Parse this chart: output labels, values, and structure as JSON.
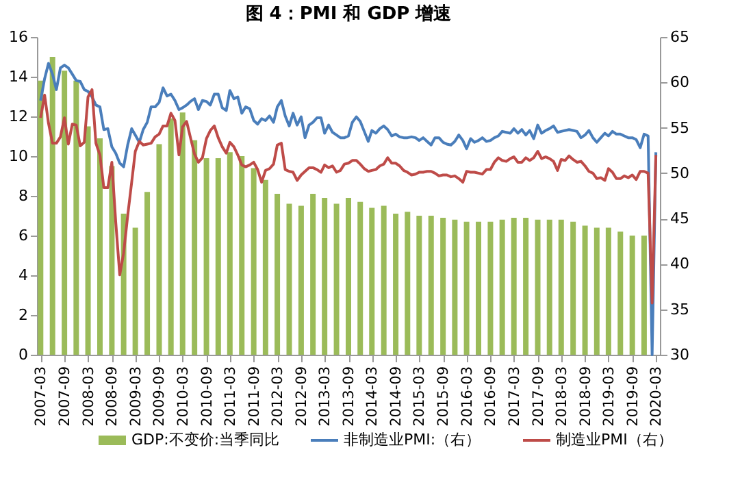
{
  "chart_data": {
    "type": "line",
    "title": "图 4：PMI 和 GDP 增速",
    "x": [
      "2007-03",
      "2007-04",
      "2007-05",
      "2007-06",
      "2007-07",
      "2007-08",
      "2007-09",
      "2007-10",
      "2007-11",
      "2007-12",
      "2008-01",
      "2008-02",
      "2008-03",
      "2008-04",
      "2008-05",
      "2008-06",
      "2008-07",
      "2008-08",
      "2008-09",
      "2008-10",
      "2008-11",
      "2008-12",
      "2009-01",
      "2009-02",
      "2009-03",
      "2009-04",
      "2009-05",
      "2009-06",
      "2009-07",
      "2009-08",
      "2009-09",
      "2009-10",
      "2009-11",
      "2009-12",
      "2010-01",
      "2010-02",
      "2010-03",
      "2010-04",
      "2010-05",
      "2010-06",
      "2010-07",
      "2010-08",
      "2010-09",
      "2010-10",
      "2010-11",
      "2010-12",
      "2011-01",
      "2011-02",
      "2011-03",
      "2011-04",
      "2011-05",
      "2011-06",
      "2011-07",
      "2011-08",
      "2011-09",
      "2011-10",
      "2011-11",
      "2011-12",
      "2012-01",
      "2012-02",
      "2012-03",
      "2012-04",
      "2012-05",
      "2012-06",
      "2012-07",
      "2012-08",
      "2012-09",
      "2012-10",
      "2012-11",
      "2012-12",
      "2013-01",
      "2013-02",
      "2013-03",
      "2013-04",
      "2013-05",
      "2013-06",
      "2013-07",
      "2013-08",
      "2013-09",
      "2013-10",
      "2013-11",
      "2013-12",
      "2014-01",
      "2014-02",
      "2014-03",
      "2014-04",
      "2014-05",
      "2014-06",
      "2014-07",
      "2014-08",
      "2014-09",
      "2014-10",
      "2014-11",
      "2014-12",
      "2015-01",
      "2015-02",
      "2015-03",
      "2015-04",
      "2015-05",
      "2015-06",
      "2015-07",
      "2015-08",
      "2015-09",
      "2015-10",
      "2015-11",
      "2015-12",
      "2016-01",
      "2016-02",
      "2016-03",
      "2016-04",
      "2016-05",
      "2016-06",
      "2016-07",
      "2016-08",
      "2016-09",
      "2016-10",
      "2016-11",
      "2016-12",
      "2017-01",
      "2017-02",
      "2017-03",
      "2017-04",
      "2017-05",
      "2017-06",
      "2017-07",
      "2017-08",
      "2017-09",
      "2017-10",
      "2017-11",
      "2017-12",
      "2018-01",
      "2018-02",
      "2018-03",
      "2018-04",
      "2018-05",
      "2018-06",
      "2018-07",
      "2018-08",
      "2018-09",
      "2018-10",
      "2018-11",
      "2018-12",
      "2019-01",
      "2019-02",
      "2019-03",
      "2019-04",
      "2019-05",
      "2019-06",
      "2019-07",
      "2019-08",
      "2019-09",
      "2019-10",
      "2019-11",
      "2019-12",
      "2020-01",
      "2020-02",
      "2020-03"
    ],
    "series": [
      {
        "name": "GDP:不变价:当季同比",
        "type": "bar",
        "axis": "y",
        "color": "#9bbb59",
        "x": [
          "2007-03",
          "2007-06",
          "2007-09",
          "2007-12",
          "2008-03",
          "2008-06",
          "2008-09",
          "2008-12",
          "2009-03",
          "2009-06",
          "2009-09",
          "2009-12",
          "2010-03",
          "2010-06",
          "2010-09",
          "2010-12",
          "2011-03",
          "2011-06",
          "2011-09",
          "2011-12",
          "2012-03",
          "2012-06",
          "2012-09",
          "2012-12",
          "2013-03",
          "2013-06",
          "2013-09",
          "2013-12",
          "2014-03",
          "2014-06",
          "2014-09",
          "2014-12",
          "2015-03",
          "2015-06",
          "2015-09",
          "2015-12",
          "2016-03",
          "2016-06",
          "2016-09",
          "2016-12",
          "2017-03",
          "2017-06",
          "2017-09",
          "2017-12",
          "2018-03",
          "2018-06",
          "2018-09",
          "2018-12",
          "2019-03",
          "2019-06",
          "2019-09",
          "2019-12"
        ],
        "values": [
          13.8,
          15.0,
          14.3,
          13.8,
          11.5,
          10.9,
          9.5,
          7.1,
          6.4,
          8.2,
          10.6,
          11.9,
          12.2,
          10.8,
          9.9,
          9.9,
          10.2,
          10.0,
          9.4,
          8.8,
          8.1,
          7.6,
          7.5,
          8.1,
          7.9,
          7.6,
          7.9,
          7.7,
          7.4,
          7.5,
          7.1,
          7.2,
          7.0,
          7.0,
          6.9,
          6.8,
          6.7,
          6.7,
          6.7,
          6.8,
          6.9,
          6.9,
          6.8,
          6.8,
          6.8,
          6.7,
          6.5,
          6.4,
          6.4,
          6.2,
          6.0,
          6.0
        ]
      },
      {
        "name": "非制造业PMI:（右）",
        "axis": "y2",
        "color": "#4a7ebb",
        "values": [
          58.0,
          60.4,
          62.1,
          60.9,
          59.2,
          61.6,
          61.9,
          61.6,
          60.9,
          60.2,
          60.1,
          59.2,
          59.0,
          58.4,
          57.5,
          57.3,
          54.8,
          54.9,
          52.9,
          52.2,
          51.1,
          50.7,
          53.1,
          54.9,
          54.2,
          53.4,
          54.8,
          55.6,
          57.3,
          57.3,
          57.8,
          59.4,
          58.5,
          58.7,
          58.0,
          57.0,
          57.2,
          57.5,
          57.9,
          58.2,
          57.0,
          58.0,
          57.9,
          57.5,
          58.7,
          58.7,
          57.2,
          56.9,
          59.1,
          58.2,
          58.4,
          56.6,
          57.3,
          57.1,
          55.8,
          55.4,
          56.0,
          55.8,
          56.3,
          55.6,
          57.3,
          58.0,
          56.3,
          55.2,
          56.6,
          55.3,
          56.2,
          53.9,
          55.3,
          55.6,
          56.1,
          56.1,
          54.4,
          55.3,
          54.5,
          54.2,
          53.9,
          53.9,
          54.1,
          55.6,
          56.2,
          55.7,
          54.6,
          53.5,
          54.7,
          54.4,
          54.9,
          55.2,
          54.8,
          54.1,
          54.3,
          54.0,
          53.9,
          53.9,
          54.0,
          53.9,
          53.6,
          53.9,
          53.5,
          53.1,
          53.9,
          53.9,
          53.4,
          53.2,
          53.1,
          53.5,
          54.2,
          53.6,
          52.7,
          53.8,
          53.4,
          53.6,
          53.9,
          53.5,
          53.6,
          53.9,
          54.1,
          54.6,
          54.5,
          54.4,
          54.9,
          54.4,
          54.8,
          54.2,
          54.7,
          53.8,
          55.3,
          54.4,
          54.7,
          54.9,
          55.2,
          54.5,
          54.6,
          54.7,
          54.8,
          54.7,
          54.6,
          53.9,
          54.2,
          54.7,
          53.9,
          53.4,
          53.9,
          54.4,
          54.1,
          54.6,
          54.3,
          54.3,
          54.1,
          53.9,
          53.9,
          53.7,
          52.8,
          54.3,
          54.1,
          30.0,
          52.3
        ]
      },
      {
        "name": "制造业PMI（右）",
        "axis": "y2",
        "color": "#be4b48",
        "values": [
          56.1,
          58.6,
          55.5,
          53.3,
          53.3,
          54.0,
          56.1,
          53.2,
          55.4,
          55.3,
          53.0,
          53.4,
          58.4,
          59.2,
          53.3,
          52.0,
          48.4,
          48.4,
          51.2,
          44.6,
          38.8,
          41.2,
          45.3,
          49.0,
          52.4,
          53.5,
          53.1,
          53.2,
          53.3,
          54.0,
          54.3,
          55.2,
          55.2,
          56.6,
          55.8,
          52.0,
          55.1,
          55.7,
          53.9,
          52.1,
          51.2,
          51.7,
          53.8,
          54.7,
          55.2,
          53.9,
          52.9,
          52.2,
          53.4,
          52.9,
          52.0,
          50.9,
          50.7,
          50.9,
          51.2,
          50.4,
          49.0,
          50.3,
          50.5,
          51.0,
          53.1,
          53.3,
          50.4,
          50.2,
          50.1,
          49.2,
          49.8,
          50.2,
          50.6,
          50.6,
          50.4,
          50.1,
          50.9,
          50.6,
          50.8,
          50.1,
          50.3,
          51.0,
          51.1,
          51.4,
          51.4,
          51.0,
          50.5,
          50.2,
          50.3,
          50.4,
          50.8,
          51.0,
          51.7,
          51.1,
          51.1,
          50.8,
          50.3,
          50.1,
          49.8,
          49.9,
          50.1,
          50.1,
          50.2,
          50.2,
          50.0,
          49.7,
          49.8,
          49.8,
          49.6,
          49.7,
          49.4,
          49.0,
          50.2,
          50.1,
          50.1,
          50.0,
          49.9,
          50.4,
          50.4,
          51.2,
          51.7,
          51.4,
          51.3,
          51.6,
          51.8,
          51.2,
          51.2,
          51.7,
          51.4,
          51.7,
          52.4,
          51.6,
          51.8,
          51.6,
          51.3,
          50.3,
          51.5,
          51.4,
          51.9,
          51.5,
          51.2,
          51.3,
          50.8,
          50.2,
          50.0,
          49.4,
          49.5,
          49.2,
          50.5,
          50.1,
          49.4,
          49.4,
          49.7,
          49.5,
          49.8,
          49.3,
          50.2,
          50.2,
          50.0,
          35.7,
          52.0
        ]
      }
    ],
    "xlim": [
      "2007-02",
      "2020-04"
    ],
    "xticks": [
      "2007-03",
      "2007-09",
      "2008-03",
      "2008-09",
      "2009-03",
      "2009-09",
      "2010-03",
      "2010-09",
      "2011-03",
      "2011-09",
      "2012-03",
      "2012-09",
      "2013-03",
      "2013-09",
      "2014-03",
      "2014-09",
      "2015-03",
      "2015-09",
      "2016-03",
      "2016-09",
      "2017-03",
      "2017-09",
      "2018-03",
      "2018-09",
      "2019-03",
      "2019-09",
      "2020-03"
    ],
    "ylim": [
      0,
      16
    ],
    "yticks": [
      0,
      2,
      4,
      6,
      8,
      10,
      12,
      14,
      16
    ],
    "y2lim": [
      30,
      65
    ],
    "y2ticks": [
      30,
      35,
      40,
      45,
      50,
      55,
      60,
      65
    ],
    "grid": false,
    "legend": "bottom",
    "marker": "none",
    "line_style": "solid"
  }
}
